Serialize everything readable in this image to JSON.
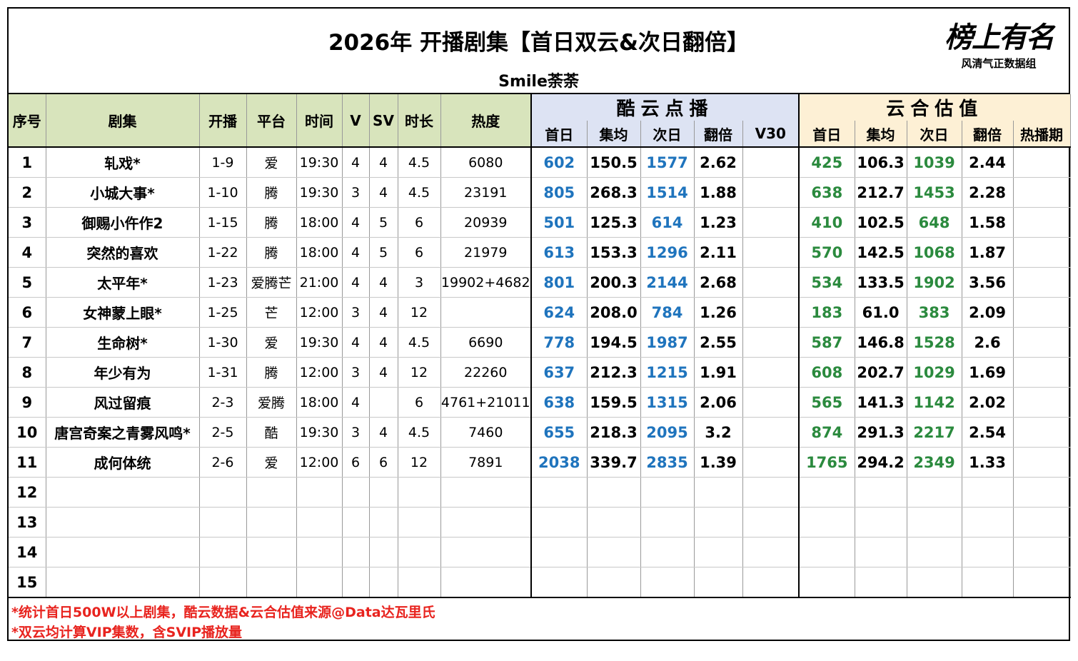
{
  "header": {
    "title": "2026年 开播剧集【首日双云&次日翻倍】",
    "subtitle": "Smile荼荼",
    "logo": {
      "main": "榜上有名",
      "sub": "风清气正数据组"
    }
  },
  "table": {
    "columns": [
      "序号",
      "剧集",
      "开播",
      "平台",
      "时间",
      "V",
      "SV",
      "时长",
      "热度"
    ],
    "group1": {
      "title": "酷云点播",
      "columns": [
        "首日",
        "集均",
        "次日",
        "翻倍",
        "V30"
      ]
    },
    "group2": {
      "title": "云合估值",
      "columns": [
        "首日",
        "集均",
        "次日",
        "翻倍",
        "热播期"
      ]
    },
    "rows": [
      [
        "1",
        "轧戏*",
        "1-9",
        "爱",
        "19:30",
        "4",
        "4",
        "4.5",
        "6080",
        "602",
        "150.5",
        "1577",
        "2.62",
        null,
        "425",
        "106.3",
        "1039",
        "2.44",
        null
      ],
      [
        "2",
        "小城大事*",
        "1-10",
        "腾",
        "19:30",
        "3",
        "4",
        "4.5",
        "23191",
        "805",
        "268.3",
        "1514",
        "1.88",
        null,
        "638",
        "212.7",
        "1453",
        "2.28",
        null
      ],
      [
        "3",
        "御赐小仵作2",
        "1-15",
        "腾",
        "18:00",
        "4",
        "5",
        "6",
        "20939",
        "501",
        "125.3",
        "614",
        "1.23",
        null,
        "410",
        "102.5",
        "648",
        "1.58",
        null
      ],
      [
        "4",
        "突然的喜欢",
        "1-22",
        "腾",
        "18:00",
        "4",
        "5",
        "6",
        "21979",
        "613",
        "153.3",
        "1296",
        "2.11",
        null,
        "570",
        "142.5",
        "1068",
        "1.87",
        null
      ],
      [
        "5",
        "太平年*",
        "1-23",
        "爱腾芒",
        "21:00",
        "4",
        "4",
        "3",
        "19902+4682",
        "801",
        "200.3",
        "2144",
        "2.68",
        null,
        "534",
        "133.5",
        "1902",
        "3.56",
        null
      ],
      [
        "6",
        "女神蒙上眼*",
        "1-25",
        "芒",
        "12:00",
        "3",
        "4",
        "12",
        null,
        "624",
        "208.0",
        "784",
        "1.26",
        null,
        "183",
        "61.0",
        "383",
        "2.09",
        null
      ],
      [
        "7",
        "生命树*",
        "1-30",
        "爱",
        "19:30",
        "4",
        "4",
        "4.5",
        "6690",
        "778",
        "194.5",
        "1987",
        "2.55",
        null,
        "587",
        "146.8",
        "1528",
        "2.6",
        null
      ],
      [
        "8",
        "年少有为",
        "1-31",
        "腾",
        "12:00",
        "3",
        "4",
        "12",
        "22260",
        "637",
        "212.3",
        "1215",
        "1.91",
        null,
        "608",
        "202.7",
        "1029",
        "1.69",
        null
      ],
      [
        "9",
        "风过留痕",
        "2-3",
        "爱腾",
        "18:00",
        "4",
        null,
        "6",
        "4761+21011",
        "638",
        "159.5",
        "1315",
        "2.06",
        null,
        "565",
        "141.3",
        "1142",
        "2.02",
        null
      ],
      [
        "10",
        "唐宫奇案之青雾风鸣*",
        "2-5",
        "酷",
        "19:30",
        "3",
        "4",
        "4.5",
        "7460",
        "655",
        "218.3",
        "2095",
        "3.2",
        null,
        "874",
        "291.3",
        "2217",
        "2.54",
        null
      ],
      [
        "11",
        "成何体统",
        "2-6",
        "爱",
        "12:00",
        "6",
        "6",
        "12",
        "7891",
        "2038",
        "339.7",
        "2835",
        "1.39",
        null,
        "1765",
        "294.2",
        "2349",
        "1.33",
        null
      ],
      [
        "12",
        null,
        null,
        null,
        null,
        null,
        null,
        null,
        null,
        null,
        null,
        null,
        null,
        null,
        null,
        null,
        null,
        null,
        null
      ],
      [
        "13",
        null,
        null,
        null,
        null,
        null,
        null,
        null,
        null,
        null,
        null,
        null,
        null,
        null,
        null,
        null,
        null,
        null,
        null
      ],
      [
        "14",
        null,
        null,
        null,
        null,
        null,
        null,
        null,
        null,
        null,
        null,
        null,
        null,
        null,
        null,
        null,
        null,
        null,
        null
      ],
      [
        "15",
        null,
        null,
        null,
        null,
        null,
        null,
        null,
        null,
        null,
        null,
        null,
        null,
        null,
        null,
        null,
        null,
        null,
        null
      ]
    ]
  },
  "footnotes": [
    "*统计首日500W以上剧集，酷云数据&云合估值来源@Data达瓦里氏",
    "*双云均计算VIP集数，含SVIP播放量"
  ]
}
